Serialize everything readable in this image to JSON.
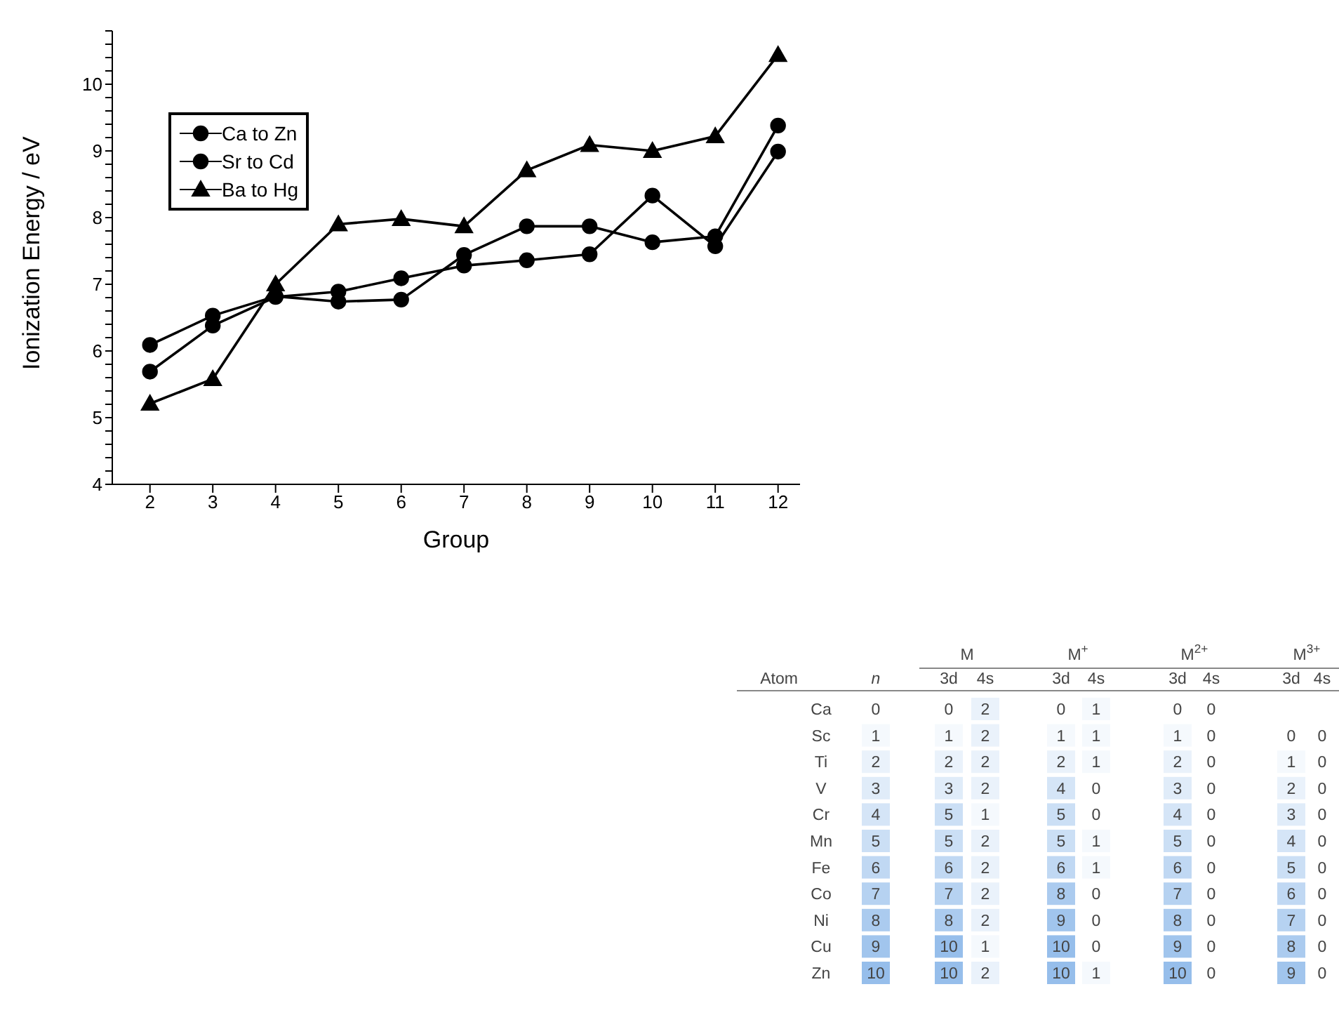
{
  "chart_data": [
    {
      "type": "line",
      "xlabel": "Group",
      "ylabel": "Ionization Energy / eV",
      "x": [
        2,
        3,
        4,
        5,
        6,
        7,
        8,
        9,
        10,
        11,
        12
      ],
      "series": [
        {
          "name": "Ca to Zn",
          "color": "#000000",
          "marker": "circle",
          "values": [
            6.09,
            6.53,
            6.82,
            6.74,
            6.77,
            7.44,
            7.87,
            7.87,
            7.63,
            7.72,
            9.38
          ]
        },
        {
          "name": "Sr to Cd",
          "color": "#000000",
          "marker": "circle",
          "values": [
            5.69,
            6.38,
            6.81,
            6.89,
            7.09,
            7.28,
            7.36,
            7.45,
            8.33,
            7.57,
            8.99
          ]
        },
        {
          "name": "Ba to Hg",
          "color": "#000000",
          "marker": "triangle",
          "values": [
            5.21,
            5.58,
            7.0,
            7.9,
            7.98,
            7.87,
            8.71,
            9.09,
            9.0,
            9.22,
            10.44
          ]
        }
      ],
      "xlim": [
        1.4,
        12.35
      ],
      "xticks": [
        2,
        3,
        4,
        5,
        6,
        7,
        8,
        9,
        10,
        11,
        12
      ],
      "ylim": [
        4,
        10.8
      ],
      "yticks": [
        4,
        {
          "value": 4.2,
          "label": null
        },
        {
          "value": 4.4,
          "label": null
        },
        {
          "value": 4.6,
          "label": null
        },
        {
          "value": 4.8,
          "label": null
        },
        5,
        {
          "value": 5.2,
          "label": null
        },
        {
          "value": 5.4,
          "label": null
        },
        {
          "value": 5.6,
          "label": null
        },
        {
          "value": 5.8,
          "label": null
        },
        6,
        {
          "value": 6.2,
          "label": null
        },
        {
          "value": 6.4,
          "label": null
        },
        {
          "value": 6.6,
          "label": null
        },
        {
          "value": 6.8,
          "label": null
        },
        7,
        {
          "value": 7.2,
          "label": null
        },
        {
          "value": 7.4,
          "label": null
        },
        {
          "value": 7.6,
          "label": null
        },
        {
          "value": 7.8,
          "label": null
        },
        8,
        {
          "value": 8.2,
          "label": null
        },
        {
          "value": 8.4,
          "label": null
        },
        {
          "value": 8.6,
          "label": null
        },
        {
          "value": 8.8,
          "label": null
        },
        9,
        {
          "value": 9.2,
          "label": null
        },
        {
          "value": 9.4,
          "label": null
        },
        {
          "value": 9.6,
          "label": null
        },
        {
          "value": 9.8,
          "label": null
        },
        10,
        {
          "value": 10.2,
          "label": null
        },
        {
          "value": 10.4,
          "label": null
        },
        {
          "value": 10.6,
          "label": null
        },
        {
          "value": 10.8,
          "label": null
        }
      ],
      "grid": false,
      "legend": "top left",
      "line_style": "solid"
    },
    {
      "type": "heatmap",
      "ylabel": "Atom",
      "annotations": [
        "M",
        "M$^{+}$",
        "M$^{2+}$",
        "M$^{3+}$"
      ],
      "categories": [
        "n",
        "3d",
        "4s",
        "3d",
        "4s",
        "3d",
        "4s",
        "3d",
        "4s"
      ],
      "y_categories": [
        "Ca",
        "Sc",
        "Ti",
        "V",
        "Cr",
        "Mn",
        "Fe",
        "Co",
        "Ni",
        "Cu",
        "Zn"
      ],
      "cells": [
        [
          0,
          0,
          2,
          0,
          1,
          0,
          0,
          null,
          null
        ],
        [
          1,
          1,
          2,
          1,
          1,
          1,
          0,
          0,
          0
        ],
        [
          2,
          2,
          2,
          2,
          1,
          2,
          0,
          1,
          0
        ],
        [
          3,
          3,
          2,
          4,
          0,
          3,
          0,
          2,
          0
        ],
        [
          4,
          5,
          1,
          5,
          0,
          4,
          0,
          3,
          0
        ],
        [
          5,
          5,
          2,
          5,
          1,
          5,
          0,
          4,
          0
        ],
        [
          6,
          6,
          2,
          6,
          1,
          6,
          0,
          5,
          0
        ],
        [
          7,
          7,
          2,
          8,
          0,
          7,
          0,
          6,
          0
        ],
        [
          8,
          8,
          2,
          9,
          0,
          8,
          0,
          7,
          0
        ],
        [
          9,
          10,
          1,
          10,
          0,
          9,
          0,
          8,
          0
        ],
        [
          10,
          10,
          2,
          10,
          1,
          10,
          0,
          9,
          0
        ]
      ],
      "data_labels": true
    }
  ]
}
